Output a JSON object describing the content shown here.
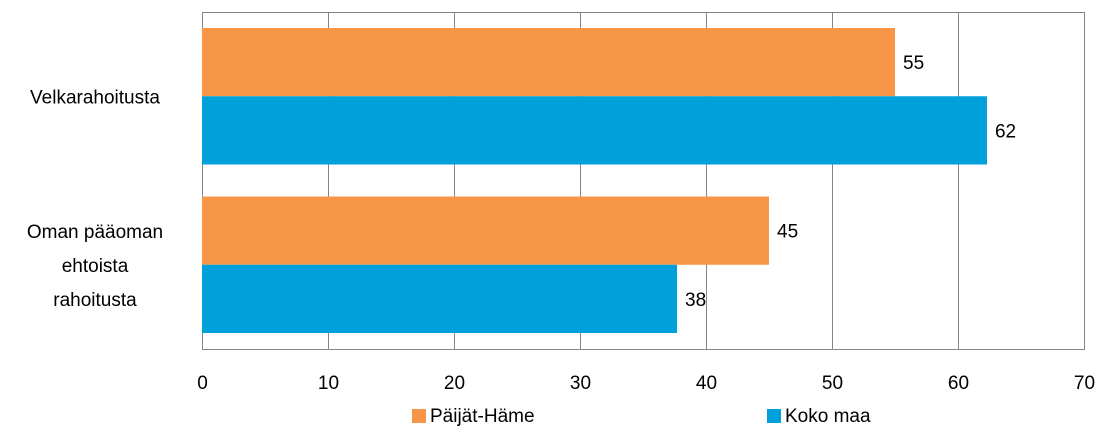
{
  "chart_data": {
    "type": "bar",
    "orientation": "horizontal",
    "title": "",
    "xlabel": "",
    "ylabel": "",
    "categories": [
      "Velkarahoitusta",
      "Oman pääoman ehtoista rahoitusta"
    ],
    "category_lines": [
      [
        "Velkarahoitusta"
      ],
      [
        "Oman pääoman",
        "ehtoista",
        "rahoitusta"
      ]
    ],
    "series": [
      {
        "name": "Päijät-Häme",
        "color": "#F79646",
        "values": [
          55,
          45
        ],
        "labels": [
          "55",
          "45"
        ]
      },
      {
        "name": "Koko maa",
        "color": "#00A1DA",
        "values": [
          62.3,
          37.7
        ],
        "labels": [
          "62",
          "38"
        ]
      }
    ],
    "xlim": [
      0,
      70
    ],
    "xticks": [
      "0",
      "10",
      "20",
      "30",
      "40",
      "50",
      "60",
      "70"
    ],
    "grid": true,
    "legend_position": "bottom"
  }
}
